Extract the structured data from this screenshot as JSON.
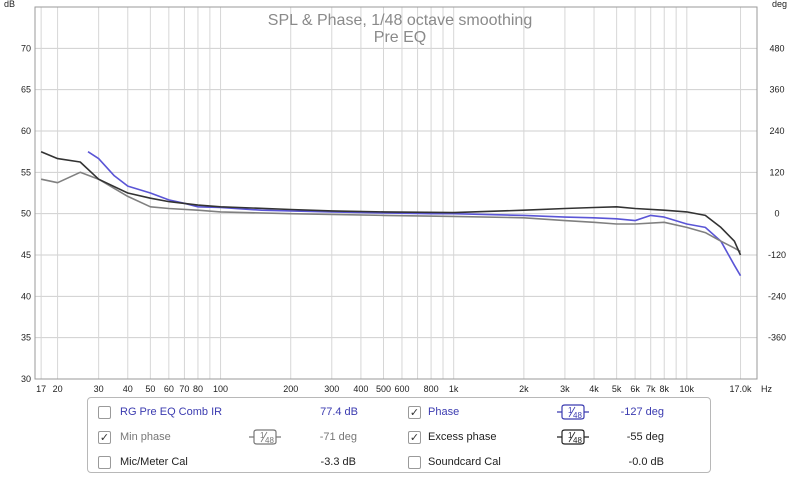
{
  "chart_data": {
    "type": "line",
    "title": "SPL & Phase, 1/48 octave smoothing",
    "subtitle": "Pre EQ",
    "left_axis": {
      "unit": "dB",
      "min": 30,
      "max": 75,
      "ticks": [
        "30",
        "35",
        "40",
        "45",
        "50",
        "55",
        "60",
        "65",
        "70"
      ]
    },
    "right_axis": {
      "unit": "deg",
      "min": -480,
      "max": 600,
      "ticks": [
        "-360",
        "-240",
        "-120",
        "0",
        "120",
        "240",
        "360",
        "480"
      ]
    },
    "x_axis": {
      "unit": "Hz",
      "scale": "log",
      "min": 16,
      "max": 20000,
      "ticks": [
        {
          "v": 17,
          "label": "17"
        },
        {
          "v": 20,
          "label": "20"
        },
        {
          "v": 30,
          "label": "30"
        },
        {
          "v": 40,
          "label": "40"
        },
        {
          "v": 50,
          "label": "50"
        },
        {
          "v": 60,
          "label": "60"
        },
        {
          "v": 70,
          "label": "70"
        },
        {
          "v": 80,
          "label": "80"
        },
        {
          "v": 100,
          "label": "100"
        },
        {
          "v": 200,
          "label": "200"
        },
        {
          "v": 300,
          "label": "300"
        },
        {
          "v": 400,
          "label": "400"
        },
        {
          "v": 500,
          "label": "500"
        },
        {
          "v": 600,
          "label": "600"
        },
        {
          "v": 800,
          "label": "800"
        },
        {
          "v": 1000,
          "label": "1k"
        },
        {
          "v": 2000,
          "label": "2k"
        },
        {
          "v": 3000,
          "label": "3k"
        },
        {
          "v": 4000,
          "label": "4k"
        },
        {
          "v": 5000,
          "label": "5k"
        },
        {
          "v": 6000,
          "label": "6k"
        },
        {
          "v": 7000,
          "label": "7k"
        },
        {
          "v": 8000,
          "label": "8k"
        },
        {
          "v": 10000,
          "label": "10k"
        },
        {
          "v": 17000,
          "label": "17.0k"
        }
      ]
    },
    "grid": true,
    "series": [
      {
        "name": "Phase",
        "color": "#5a55d6",
        "axis": "right",
        "style": "solid",
        "points": [
          [
            27,
            180
          ],
          [
            30,
            160
          ],
          [
            35,
            110
          ],
          [
            40,
            80
          ],
          [
            50,
            60
          ],
          [
            60,
            40
          ],
          [
            70,
            30
          ],
          [
            80,
            20
          ],
          [
            100,
            18
          ],
          [
            150,
            10
          ],
          [
            200,
            8
          ],
          [
            300,
            5
          ],
          [
            500,
            2
          ],
          [
            800,
            0
          ],
          [
            1000,
            0
          ],
          [
            2000,
            -5
          ],
          [
            3000,
            -10
          ],
          [
            4000,
            -12
          ],
          [
            5000,
            -15
          ],
          [
            6000,
            -20
          ],
          [
            7000,
            -5
          ],
          [
            8000,
            -10
          ],
          [
            10000,
            -30
          ],
          [
            12000,
            -40
          ],
          [
            14000,
            -80
          ],
          [
            16000,
            -150
          ],
          [
            17000,
            -180
          ]
        ]
      },
      {
        "name": "Min phase",
        "color": "#808080",
        "axis": "right",
        "style": "solid",
        "points": [
          [
            17,
            100
          ],
          [
            20,
            90
          ],
          [
            25,
            120
          ],
          [
            30,
            100
          ],
          [
            40,
            50
          ],
          [
            50,
            20
          ],
          [
            60,
            15
          ],
          [
            80,
            10
          ],
          [
            100,
            5
          ],
          [
            200,
            0
          ],
          [
            300,
            -2
          ],
          [
            500,
            -5
          ],
          [
            1000,
            -8
          ],
          [
            2000,
            -12
          ],
          [
            3000,
            -20
          ],
          [
            4000,
            -25
          ],
          [
            5000,
            -30
          ],
          [
            6000,
            -30
          ],
          [
            8000,
            -25
          ],
          [
            10000,
            -40
          ],
          [
            12000,
            -55
          ],
          [
            14000,
            -80
          ],
          [
            16000,
            -100
          ],
          [
            17000,
            -110
          ]
        ]
      },
      {
        "name": "Excess phase",
        "color": "#333333",
        "axis": "right",
        "style": "solid",
        "points": [
          [
            17,
            180
          ],
          [
            20,
            160
          ],
          [
            25,
            150
          ],
          [
            30,
            100
          ],
          [
            40,
            60
          ],
          [
            50,
            45
          ],
          [
            60,
            35
          ],
          [
            80,
            25
          ],
          [
            100,
            20
          ],
          [
            200,
            12
          ],
          [
            300,
            8
          ],
          [
            500,
            5
          ],
          [
            1000,
            3
          ],
          [
            2000,
            10
          ],
          [
            3000,
            15
          ],
          [
            4000,
            18
          ],
          [
            5000,
            20
          ],
          [
            6000,
            15
          ],
          [
            8000,
            10
          ],
          [
            10000,
            5
          ],
          [
            12000,
            -5
          ],
          [
            14000,
            -40
          ],
          [
            16000,
            -80
          ],
          [
            17000,
            -120
          ]
        ]
      }
    ]
  },
  "legend": {
    "rows": [
      [
        {
          "checked": false,
          "label": "RG Pre EQ Comb IR",
          "value": "77.4 dB",
          "color": "#3b3bb0",
          "smoothing": ""
        },
        {
          "checked": true,
          "label": "Phase",
          "value": "-127 deg",
          "color": "#3b3bb0",
          "smoothing": "1/48"
        }
      ],
      [
        {
          "checked": true,
          "label": "Min phase",
          "value": "-71 deg",
          "color": "#777777",
          "smoothing": "1/48"
        },
        {
          "checked": true,
          "label": "Excess phase",
          "value": "-55 deg",
          "color": "#222222",
          "smoothing": "1/48"
        }
      ],
      [
        {
          "checked": false,
          "label": "Mic/Meter Cal",
          "value": "-3.3 dB",
          "color": "#222222",
          "smoothing": ""
        },
        {
          "checked": false,
          "label": "Soundcard Cal",
          "value": "-0.0 dB",
          "color": "#222222",
          "smoothing": ""
        }
      ]
    ]
  }
}
